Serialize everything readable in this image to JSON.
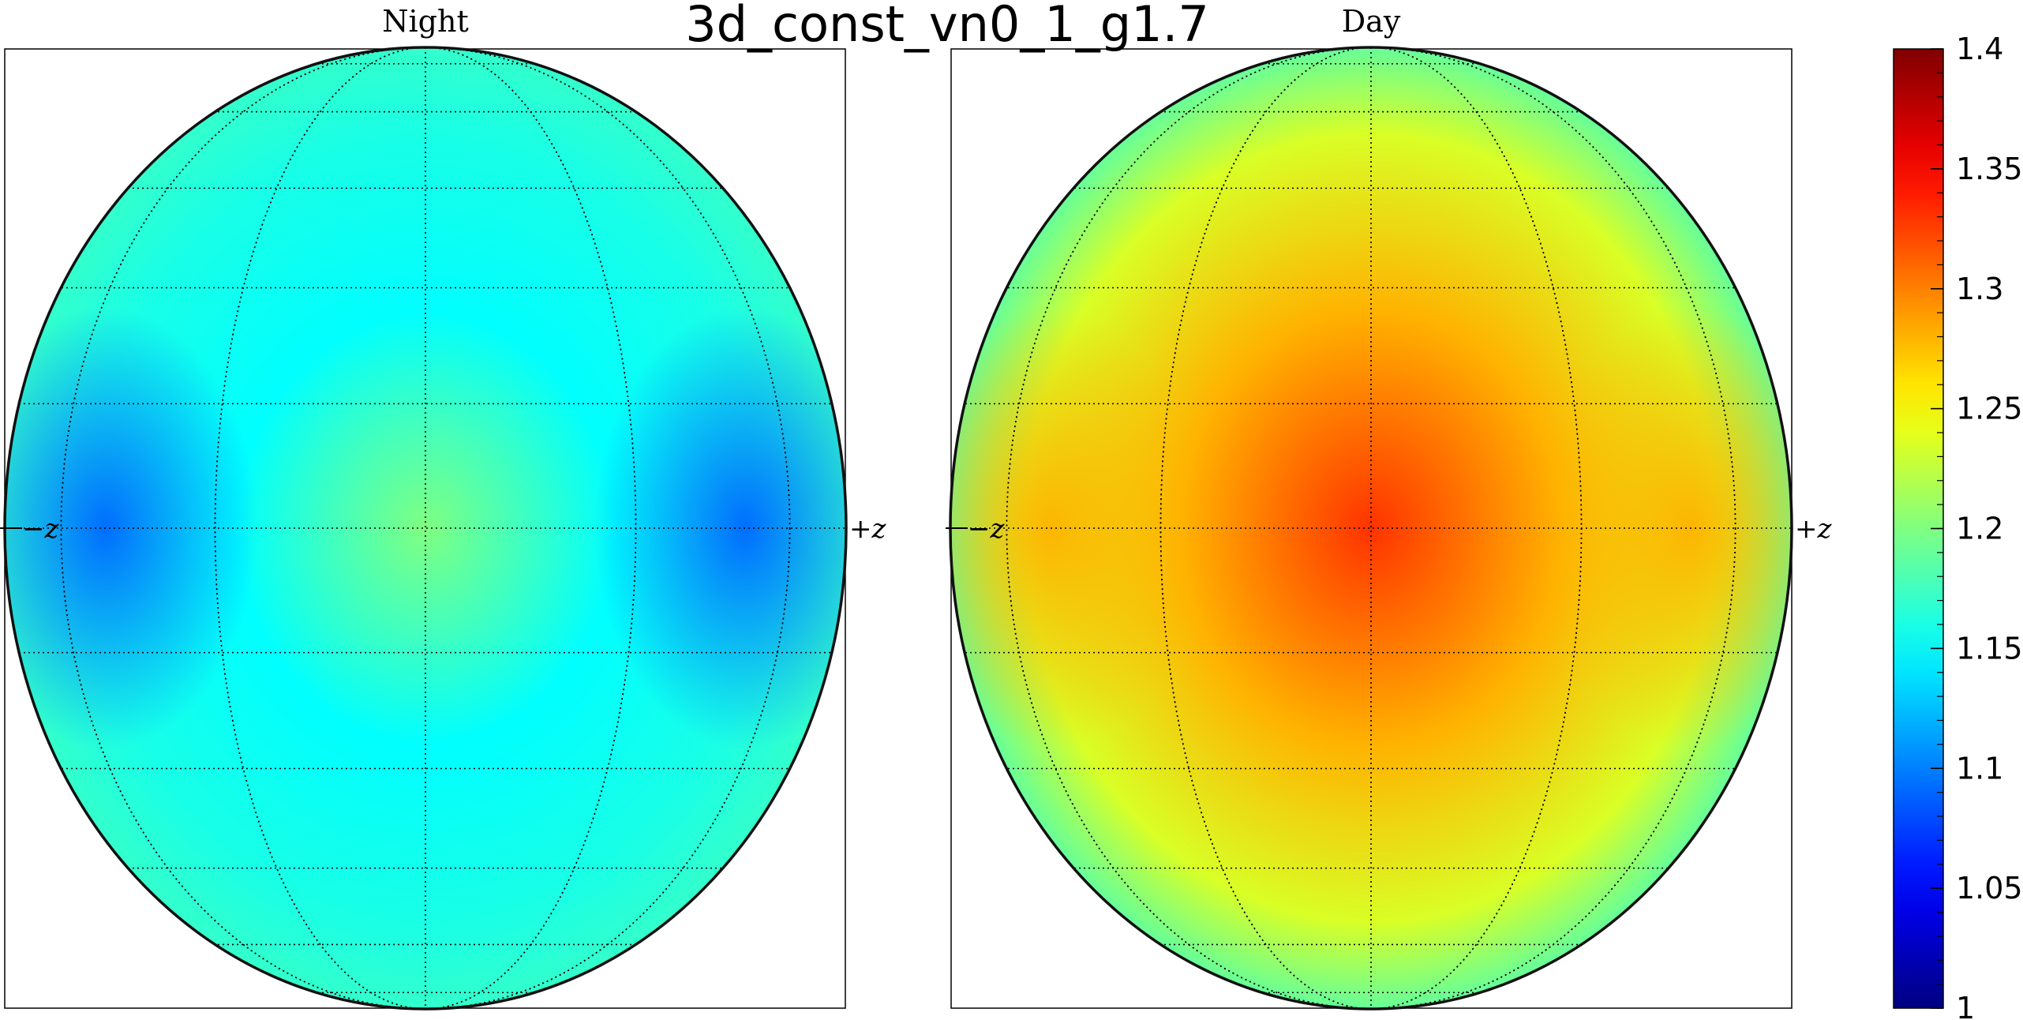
{
  "title": "3d_const_vn0_1_g1.7",
  "chart_data": {
    "type": "heatmap",
    "projection": "orthographic-sphere",
    "colormap": "jet",
    "grid": true,
    "clim": [
      1,
      1.4
    ],
    "colorbar": {
      "placement": "right",
      "ticks": [
        1,
        1.05,
        1.1,
        1.15,
        1.2,
        1.25,
        1.3,
        1.35,
        1.4
      ],
      "tick_labels": [
        "1",
        "1.05",
        "1.1",
        "1.15",
        "1.2",
        "1.25",
        "1.3",
        "1.35",
        "1.4"
      ]
    },
    "panels": [
      {
        "title": "Night",
        "left_axis_label": "−z",
        "right_axis_label": "+z",
        "center_value": 1.2,
        "mid_ring_value": 1.15,
        "side_min_value": 1.09,
        "limb_value": 1.17
      },
      {
        "title": "Day",
        "left_axis_label": "−z",
        "right_axis_label": "+z",
        "center_value": 1.33,
        "mid_ring_value": 1.28,
        "side_min_value": 1.28,
        "limb_value": 1.19
      }
    ]
  }
}
